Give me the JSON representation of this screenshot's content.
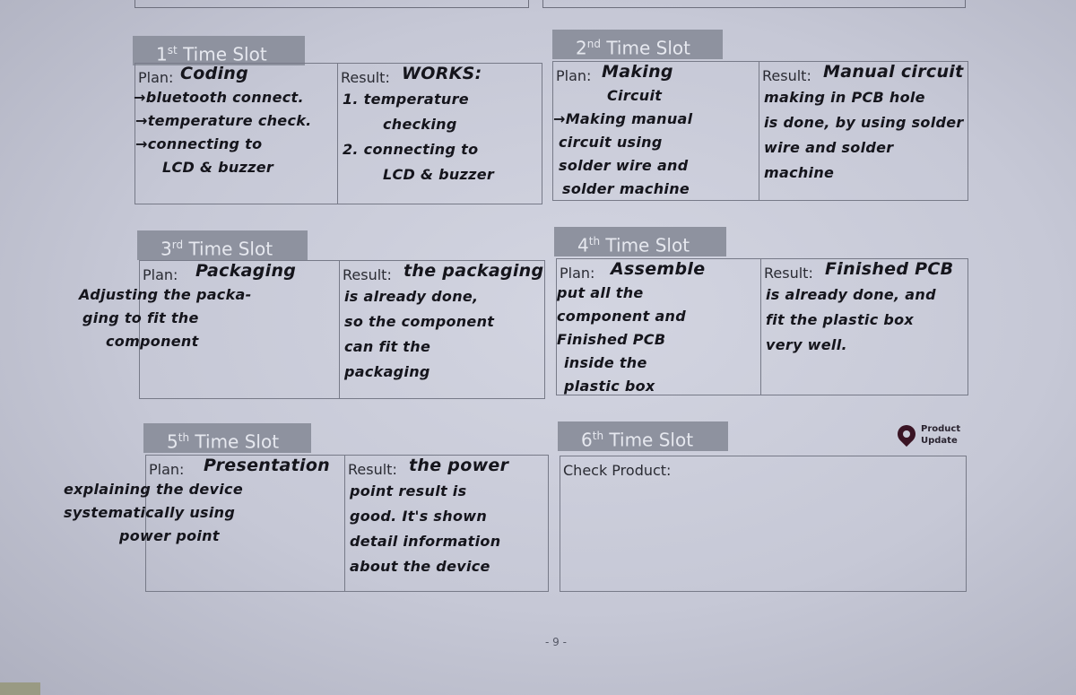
{
  "footer": {
    "page_number": "- 9 -"
  },
  "badge": {
    "line1": "Product",
    "line2": "Update",
    "icon": "map-pin-icon",
    "color": "#3a1424"
  },
  "slots": [
    {
      "ordinal": "1",
      "suffix": "st",
      "title": "Time Slot",
      "plan_label": "Plan:",
      "result_label": "Result:",
      "plan_heading": "Coding",
      "plan_lines": [
        "→bluetooth connect.",
        "→temperature check.",
        "→connecting to",
        "LCD & buzzer"
      ],
      "result_heading": "WORKS:",
      "result_lines": [
        "1. temperature",
        "checking",
        "2. connecting to",
        "LCD & buzzer"
      ]
    },
    {
      "ordinal": "2",
      "suffix": "nd",
      "title": "Time Slot",
      "plan_label": "Plan:",
      "result_label": "Result:",
      "plan_heading": "Making",
      "plan_lines": [
        "Circuit",
        "→Making manual",
        "circuit using",
        "solder wire and",
        "solder machine"
      ],
      "result_heading": "Manual circuit",
      "result_lines": [
        "making in PCB hole",
        "is done, by using solder",
        "wire and solder",
        "machine"
      ]
    },
    {
      "ordinal": "3",
      "suffix": "rd",
      "title": "Time Slot",
      "plan_label": "Plan:",
      "result_label": "Result:",
      "plan_heading": "Packaging",
      "plan_lines": [
        "Adjusting the packa-",
        "ging to fit the",
        "component"
      ],
      "result_heading": "the packaging",
      "result_lines": [
        "is already done,",
        "so the component",
        "can fit the",
        "packaging"
      ]
    },
    {
      "ordinal": "4",
      "suffix": "th",
      "title": "Time Slot",
      "plan_label": "Plan:",
      "result_label": "Result:",
      "plan_heading": "Assemble",
      "plan_lines": [
        "put all the",
        "component and",
        "Finished PCB",
        "inside the",
        "plastic box"
      ],
      "result_heading": "Finished PCB",
      "result_lines": [
        "is already done, and",
        "fit the plastic box",
        "very well."
      ]
    },
    {
      "ordinal": "5",
      "suffix": "th",
      "title": "Time Slot",
      "plan_label": "Plan:",
      "result_label": "Result:",
      "plan_heading": "Presentation",
      "plan_lines": [
        "explaining the device",
        "systematically using",
        "power point"
      ],
      "result_heading": "the power",
      "result_lines": [
        "point result is",
        "good. It's shown",
        "detail information",
        "about the device"
      ]
    },
    {
      "ordinal": "6",
      "suffix": "th",
      "title": "Time Slot",
      "check_label": "Check Product:"
    }
  ]
}
